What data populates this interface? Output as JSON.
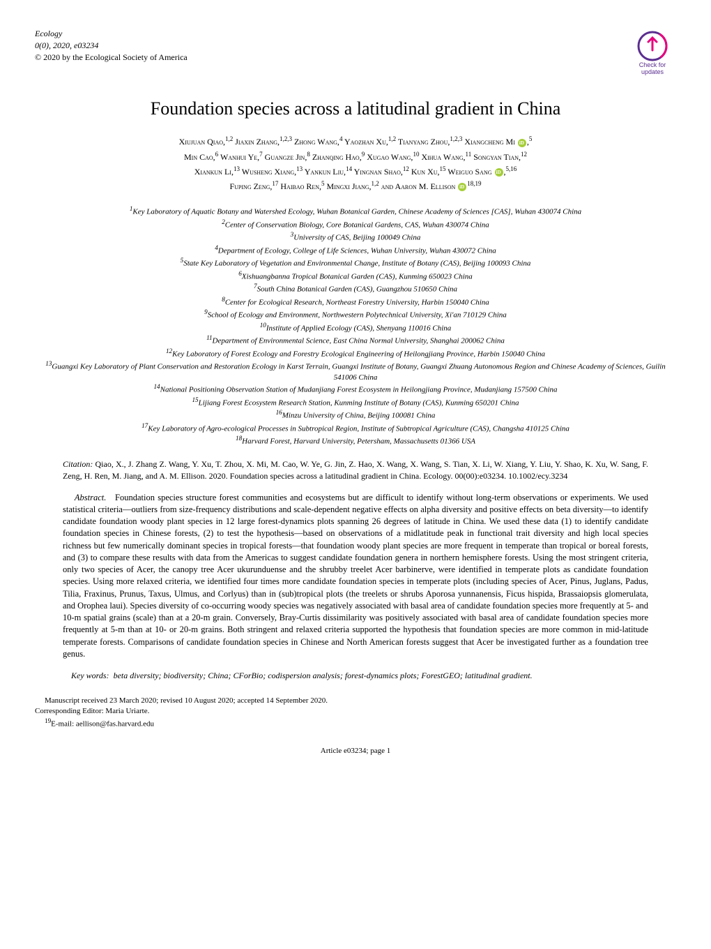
{
  "header": {
    "journal": "Ecology",
    "issue": "0(0), 2020, e03234",
    "copyright": "© 2020 by the Ecological Society of America",
    "badge_text_top": "Check for",
    "badge_text_bottom": "updates",
    "badge_colors": {
      "bg": "#ffffff",
      "ring": "#5b2e8f",
      "arrow": "#e6007e",
      "text": "#5b2e8f"
    }
  },
  "title": "Foundation species across a latitudinal gradient in China",
  "authors_lines": [
    "Xiujuan Qiao,<sup>1,2</sup> Jiaxin Zhang,<sup>1,2,3</sup> Zhong Wang,<sup>4</sup> Yaozhan Xu,<sup>1,2</sup> Tianyang Zhou,<sup>1,2,3</sup> Xiangcheng Mi <span class=\"orcid\"></span>,<sup>5</sup>",
    "Min Cao,<sup>6</sup> Wanhui Ye,<sup>7</sup> Guangze Jin,<sup>8</sup> Zhanqing Hao,<sup>9</sup> Xugao Wang,<sup>10</sup> Xihua Wang,<sup>11</sup> Songyan Tian,<sup>12</sup>",
    "Xiankun Li,<sup>13</sup> Wusheng Xiang,<sup>13</sup> Yankun Liu,<sup>14</sup> Yingnan Shao,<sup>12</sup> Kun Xu,<sup>15</sup> Weiguo Sang <span class=\"orcid\"></span>,<sup>5,16</sup>",
    "Fuping Zeng,<sup>17</sup> Haibao Ren,<sup>5</sup> Mingxi Jiang,<sup>1,2</sup> and Aaron M. Ellison <span class=\"orcid\"></span><sup>18,19</sup>"
  ],
  "affiliations": [
    "<sup>1</sup>Key Laboratory of Aquatic Botany and Watershed Ecology, Wuhan Botanical Garden, Chinese Academy of Sciences [CAS], Wuhan 430074 China",
    "<sup>2</sup>Center of Conservation Biology, Core Botanical Gardens, CAS, Wuhan 430074 China",
    "<sup>3</sup>University of CAS, Beijing 100049 China",
    "<sup>4</sup>Department of Ecology, College of Life Sciences, Wuhan University, Wuhan 430072 China",
    "<sup>5</sup>State Key Laboratory of Vegetation and Environmental Change, Institute of Botany (CAS), Beijing 100093 China",
    "<sup>6</sup>Xishuangbanna Tropical Botanical Garden (CAS), Kunming 650023 China",
    "<sup>7</sup>South China Botanical Garden (CAS), Guangzhou 510650 China",
    "<sup>8</sup>Center for Ecological Research, Northeast Forestry University, Harbin 150040 China",
    "<sup>9</sup>School of Ecology and Environment, Northwestern Polytechnical University, Xi'an 710129 China",
    "<sup>10</sup>Institute of Applied Ecology (CAS), Shenyang 110016 China",
    "<sup>11</sup>Department of Environmental Science, East China Normal University, Shanghai 200062 China",
    "<sup>12</sup>Key Laboratory of Forest Ecology and Forestry Ecological Engineering of Heilongjiang Province, Harbin 150040 China",
    "<sup>13</sup>Guangxi Key Laboratory of Plant Conservation and Restoration Ecology in Karst Terrain, Guangxi Institute of Botany, Guangxi Zhuang Autonomous Region and Chinese Academy of Sciences, Guilin 541006 China",
    "<sup>14</sup>National Positioning Observation Station of Mudanjiang Forest Ecosystem in Heilongjiang Province, Mudanjiang 157500 China",
    "<sup>15</sup>Lijiang Forest Ecosystem Research Station, Kunming Institute of Botany (CAS), Kunming 650201 China",
    "<sup>16</sup>Minzu University of China, Beijing 100081 China",
    "<sup>17</sup>Key Laboratory of Agro-ecological Processes in Subtropical Region, Institute of Subtropical Agriculture (CAS), Changsha 410125 China",
    "<sup>18</sup>Harvard Forest, Harvard University, Petersham, Massachusetts 01366 USA"
  ],
  "citation": {
    "label": "Citation:",
    "text": "Qiao, X., J. Zhang Z. Wang, Y. Xu, T. Zhou, X. Mi, M. Cao, W. Ye, G. Jin, Z. Hao, X. Wang, X. Wang, S. Tian, X. Li, W. Xiang, Y. Liu, Y. Shao, K. Xu, W. Sang, F. Zeng, H. Ren, M. Jiang, and A. M. Ellison. 2020. Foundation species across a latitudinal gradient in China. Ecology. 00(00):e03234. 10.1002/ecy.3234"
  },
  "abstract": {
    "label": "Abstract.",
    "text": "Foundation species structure forest communities and ecosystems but are difficult to identify without long-term observations or experiments. We used statistical criteria—outliers from size-frequency distributions and scale-dependent negative effects on alpha diversity and positive effects on beta diversity—to identify candidate foundation woody plant species in 12 large forest-dynamics plots spanning 26 degrees of latitude in China. We used these data (1) to identify candidate foundation species in Chinese forests, (2) to test the hypothesis—based on observations of a midlatitude peak in functional trait diversity and high local species richness but few numerically dominant species in tropical forests—that foundation woody plant species are more frequent in temperate than tropical or boreal forests, and (3) to compare these results with data from the Americas to suggest candidate foundation genera in northern hemisphere forests. Using the most stringent criteria, only two species of Acer, the canopy tree Acer ukurunduense and the shrubby treelet Acer barbinerve, were identified in temperate plots as candidate foundation species. Using more relaxed criteria, we identified four times more candidate foundation species in temperate plots (including species of Acer, Pinus, Juglans, Padus, Tilia, Fraxinus, Prunus, Taxus, Ulmus, and Corlyus) than in (sub)tropical plots (the treelets or shrubs Aporosa yunnanensis, Ficus hispida, Brassaiopsis glomerulata, and Orophea laui). Species diversity of co-occurring woody species was negatively associated with basal area of candidate foundation species more frequently at 5- and 10-m spatial grains (scale) than at a 20-m grain. Conversely, Bray-Curtis dissimilarity was positively associated with basal area of candidate foundation species more frequently at 5-m than at 10- or 20-m grains. Both stringent and relaxed criteria supported the hypothesis that foundation species are more common in mid-latitude temperate forests. Comparisons of candidate foundation species in Chinese and North American forests suggest that Acer be investigated further as a foundation tree genus."
  },
  "keywords": {
    "label": "Key words:",
    "text": "beta diversity; biodiversity; China; CForBio; codispersion analysis; forest-dynamics plots; ForestGEO; latitudinal gradient."
  },
  "footer": {
    "manuscript": "Manuscript received 23 March 2020; revised 10 August 2020; accepted 14 September 2020. Corresponding Editor: Maria Uriarte.",
    "email_sup": "19",
    "email_label": "E-mail:",
    "email": "aellison@fas.harvard.edu"
  },
  "article_footer": "Article e03234; page 1"
}
